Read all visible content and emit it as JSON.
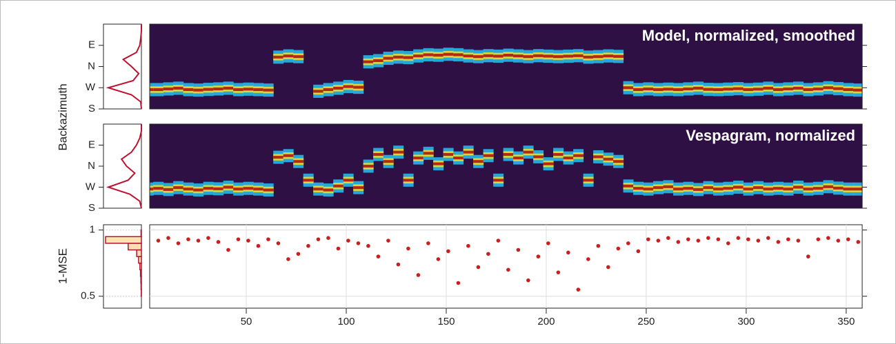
{
  "chart_data": [
    {
      "type": "heatmap",
      "title": "Model, normalized, smoothed",
      "ylabel": "Backazimuth",
      "x": [
        1,
        6,
        11,
        16,
        21,
        26,
        31,
        36,
        41,
        46,
        51,
        56,
        61,
        66,
        71,
        76,
        81,
        86,
        91,
        96,
        101,
        106,
        111,
        116,
        121,
        126,
        131,
        136,
        141,
        146,
        151,
        156,
        161,
        166,
        171,
        176,
        181,
        186,
        191,
        196,
        201,
        206,
        211,
        216,
        221,
        226,
        231,
        236,
        241,
        246,
        251,
        256,
        261,
        266,
        271,
        276,
        281,
        286,
        291,
        296,
        301,
        306,
        311,
        316,
        321,
        326,
        331,
        336,
        341,
        346,
        351,
        356
      ],
      "values": [
        262,
        262,
        265,
        268,
        262,
        260,
        263,
        265,
        268,
        262,
        264,
        262,
        260,
        400,
        405,
        402,
        null,
        255,
        262,
        268,
        275,
        272,
        380,
        385,
        395,
        400,
        398,
        405,
        410,
        408,
        412,
        410,
        405,
        402,
        406,
        404,
        408,
        405,
        402,
        406,
        404,
        402,
        404,
        406,
        400,
        402,
        405,
        403,
        270,
        262,
        265,
        262,
        264,
        262,
        265,
        268,
        263,
        262,
        264,
        266,
        262,
        264,
        268,
        262,
        265,
        268,
        262,
        265,
        270,
        266,
        262,
        260
      ],
      "xlim": [
        1.7,
        358
      ],
      "ylim": [
        180,
        540
      ],
      "yticks": [
        {
          "value": 180,
          "label": "S"
        },
        {
          "value": 270,
          "label": "W"
        },
        {
          "value": 360,
          "label": "N"
        },
        {
          "value": 450,
          "label": "E"
        }
      ],
      "colormap": [
        "#2e1045",
        "#27b8e8",
        "#e8dc34",
        "#b1150c"
      ],
      "marginal": {
        "angles": [
          180,
          210,
          240,
          270,
          300,
          330,
          360,
          390,
          420,
          450,
          480,
          510,
          540
        ],
        "density": [
          0,
          0.02,
          0.3,
          1,
          0.25,
          0.08,
          0.3,
          0.55,
          0.15,
          0.05,
          0.02,
          0,
          0
        ],
        "color": "#c0102e"
      }
    },
    {
      "type": "heatmap",
      "title": "Vespagram, normalized",
      "x": [
        1,
        6,
        11,
        16,
        21,
        26,
        31,
        36,
        41,
        46,
        51,
        56,
        61,
        66,
        71,
        76,
        81,
        86,
        91,
        96,
        101,
        106,
        111,
        116,
        121,
        126,
        131,
        136,
        141,
        146,
        151,
        156,
        161,
        166,
        171,
        176,
        181,
        186,
        191,
        196,
        201,
        206,
        211,
        216,
        221,
        226,
        231,
        236,
        241,
        246,
        251,
        256,
        261,
        266,
        271,
        276,
        281,
        286,
        291,
        296,
        301,
        306,
        311,
        316,
        321,
        326,
        331,
        336,
        341,
        346,
        351,
        356
      ],
      "values": [
        262,
        265,
        260,
        268,
        262,
        258,
        265,
        263,
        270,
        262,
        265,
        262,
        258,
        398,
        405,
        380,
        300,
        262,
        258,
        275,
        300,
        268,
        360,
        410,
        380,
        420,
        300,
        395,
        415,
        370,
        410,
        395,
        420,
        380,
        405,
        300,
        410,
        395,
        420,
        400,
        370,
        410,
        395,
        405,
        300,
        400,
        390,
        380,
        275,
        265,
        262,
        268,
        272,
        262,
        265,
        260,
        268,
        262,
        265,
        270,
        262,
        268,
        262,
        265,
        262,
        270,
        262,
        265,
        272,
        266,
        262,
        262
      ],
      "xlim": [
        1.7,
        358
      ],
      "ylim": [
        180,
        540
      ],
      "yticks": [
        {
          "value": 180,
          "label": "S"
        },
        {
          "value": 270,
          "label": "W"
        },
        {
          "value": 360,
          "label": "N"
        },
        {
          "value": 450,
          "label": "E"
        }
      ],
      "colormap": [
        "#2e1045",
        "#27b8e8",
        "#e8dc34",
        "#b1150c"
      ],
      "marginal": {
        "angles": [
          180,
          210,
          240,
          270,
          300,
          330,
          360,
          390,
          420,
          450,
          480,
          510,
          540
        ],
        "density": [
          0,
          0.05,
          0.35,
          1,
          0.4,
          0.2,
          0.45,
          0.6,
          0.3,
          0.15,
          0.05,
          0,
          0
        ],
        "color": "#c0102e"
      }
    },
    {
      "type": "scatter",
      "ylabel": "1-MSE",
      "color": "#c8201e",
      "grid": true,
      "x": [
        1,
        6,
        11,
        16,
        21,
        26,
        31,
        36,
        41,
        46,
        51,
        56,
        61,
        66,
        71,
        76,
        81,
        86,
        91,
        96,
        101,
        106,
        111,
        116,
        121,
        126,
        131,
        136,
        141,
        146,
        151,
        156,
        161,
        166,
        171,
        176,
        181,
        186,
        191,
        196,
        201,
        206,
        211,
        216,
        221,
        226,
        231,
        236,
        241,
        246,
        251,
        256,
        261,
        266,
        271,
        276,
        281,
        286,
        291,
        296,
        301,
        306,
        311,
        316,
        321,
        326,
        331,
        336,
        341,
        346,
        351,
        356
      ],
      "values": [
        0.93,
        0.92,
        0.94,
        0.9,
        0.93,
        0.92,
        0.94,
        0.91,
        0.85,
        0.93,
        0.92,
        0.88,
        0.93,
        0.9,
        0.78,
        0.82,
        0.88,
        0.93,
        0.94,
        0.86,
        0.92,
        0.9,
        0.88,
        0.8,
        0.92,
        0.74,
        0.86,
        0.66,
        0.9,
        0.78,
        0.84,
        0.6,
        0.88,
        0.72,
        0.82,
        0.92,
        0.7,
        0.85,
        0.62,
        0.8,
        0.9,
        0.68,
        0.83,
        0.55,
        0.78,
        0.88,
        0.72,
        0.86,
        0.9,
        0.84,
        0.93,
        0.92,
        0.94,
        0.91,
        0.93,
        0.92,
        0.94,
        0.93,
        0.9,
        0.94,
        0.93,
        0.92,
        0.94,
        0.91,
        0.93,
        0.92,
        0.8,
        0.93,
        0.94,
        0.92,
        0.93,
        0.91
      ],
      "xlim": [
        1.7,
        358
      ],
      "ylim": [
        0.41,
        1.04
      ],
      "xticks": [
        50,
        100,
        150,
        200,
        250,
        300,
        350
      ],
      "yticks": [
        0.5,
        1
      ],
      "histogram": {
        "bins": [
          0.5,
          0.55,
          0.6,
          0.65,
          0.7,
          0.75,
          0.8,
          0.85,
          0.9,
          0.95,
          1
        ],
        "counts": [
          1,
          2,
          3,
          5,
          8,
          15,
          25,
          70,
          190,
          2
        ],
        "color": "#fde1b3",
        "edgecolor": "#b3152c"
      }
    }
  ]
}
